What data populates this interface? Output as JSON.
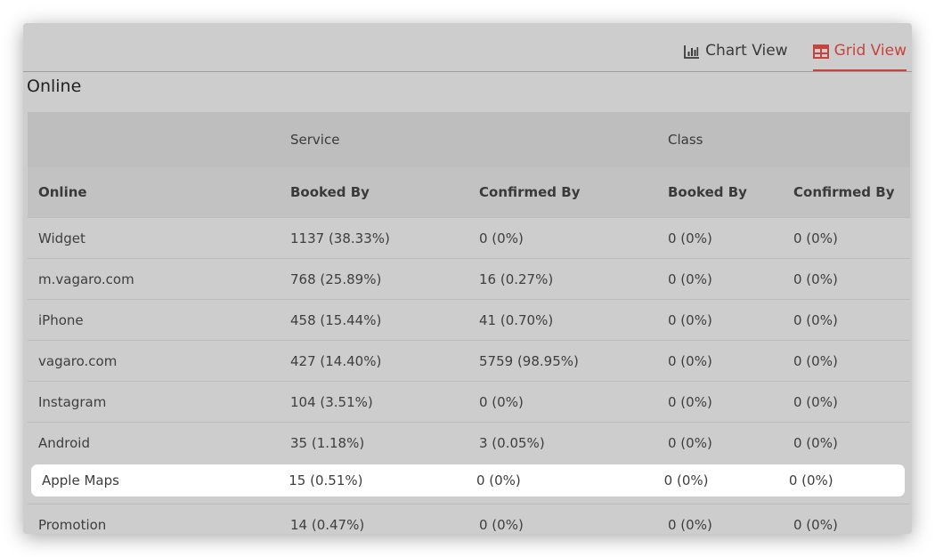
{
  "view_tabs": {
    "chart_view_label": "Chart View",
    "grid_view_label": "Grid View",
    "active": "grid",
    "accent_color": "#c8433c"
  },
  "section_title": "Online",
  "table": {
    "group_headers": [
      "",
      "Service",
      "",
      "Class",
      ""
    ],
    "columns": [
      "Online",
      "Booked By",
      "Confirmed By",
      "Booked By",
      "Confirmed By"
    ],
    "rows": [
      [
        "Widget",
        "1137 (38.33%)",
        "0 (0%)",
        "0 (0%)",
        "0 (0%)"
      ],
      [
        "m.vagaro.com",
        "768 (25.89%)",
        "16 (0.27%)",
        "0 (0%)",
        "0 (0%)"
      ],
      [
        "iPhone",
        "458 (15.44%)",
        "41 (0.70%)",
        "0 (0%)",
        "0 (0%)"
      ],
      [
        "vagaro.com",
        "427 (14.40%)",
        "5759 (98.95%)",
        "0 (0%)",
        "0 (0%)"
      ],
      [
        "Instagram",
        "104 (3.51%)",
        "0 (0%)",
        "0 (0%)",
        "0 (0%)"
      ],
      [
        "Android",
        "35 (1.18%)",
        "3 (0.05%)",
        "0 (0%)",
        "0 (0%)"
      ],
      [
        "Apple Maps",
        "15 (0.51%)",
        "0 (0%)",
        "0 (0%)",
        "0 (0%)"
      ],
      [
        "Promotion",
        "14 (0.47%)",
        "0 (0%)",
        "0 (0%)",
        "0 (0%)"
      ]
    ],
    "highlighted_row": "Apple Maps"
  }
}
